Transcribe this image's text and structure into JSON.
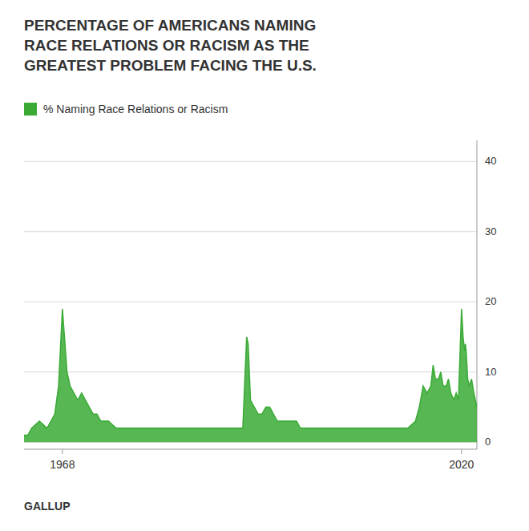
{
  "chart_data": {
    "type": "area",
    "title": "PERCENTAGE OF AMERICANS NAMING\nRACE RELATIONS OR RACISM AS THE\nGREATEST PROBLEM FACING THE U.S.",
    "annotations": [
      "GALLUP"
    ],
    "x": [
      1963,
      1963.5,
      1964,
      1965,
      1966,
      1966.5,
      1967,
      1967.5,
      1968,
      1968.2,
      1968.4,
      1968.6,
      1968.8,
      1969,
      1969.5,
      1970,
      1970.5,
      1971,
      1971.5,
      1972,
      1972.5,
      1973,
      1974,
      1975,
      1976,
      1977,
      1978,
      1979,
      1980,
      1981,
      1982,
      1983,
      1984,
      1985,
      1986,
      1987,
      1988,
      1989,
      1990,
      1991,
      1991.5,
      1992,
      1992.2,
      1992.5,
      1993,
      1993.5,
      1994,
      1994.5,
      1995,
      1995.5,
      1996,
      1996.5,
      1997,
      1997.5,
      1998,
      1998.5,
      1999,
      2000,
      2000.5,
      2001,
      2002,
      2003,
      2004,
      2005,
      2006,
      2007,
      2008,
      2009,
      2010,
      2011,
      2012,
      2013,
      2014,
      2014.5,
      2015,
      2015.5,
      2016,
      2016.3,
      2016.6,
      2017,
      2017.3,
      2017.6,
      2018,
      2018.3,
      2018.6,
      2019,
      2019.3,
      2019.6,
      2020,
      2020.1,
      2020.2,
      2020.3,
      2020.4,
      2020.5,
      2020.6,
      2020.8,
      2021,
      2021.3,
      2021.6,
      2022
    ],
    "series": [
      {
        "name": "% Naming Race Relations or Racism",
        "color": "#3aaa35",
        "values": [
          1,
          1,
          2,
          3,
          2,
          3,
          4,
          8,
          19,
          16,
          13,
          10,
          9,
          8,
          7,
          6,
          7,
          6,
          5,
          4,
          4,
          3,
          3,
          2,
          2,
          2,
          2,
          2,
          2,
          2,
          2,
          2,
          2,
          2,
          2,
          2,
          2,
          2,
          2,
          2,
          2,
          15,
          14,
          6,
          5,
          4,
          4,
          5,
          5,
          4,
          3,
          3,
          3,
          3,
          3,
          3,
          2,
          2,
          2,
          2,
          2,
          2,
          2,
          2,
          2,
          2,
          2,
          2,
          2,
          2,
          2,
          2,
          3,
          5,
          8,
          7,
          8,
          11,
          9,
          9,
          10,
          8,
          8,
          9,
          7,
          6,
          7,
          6,
          19,
          17,
          15,
          14,
          13,
          14,
          13,
          9,
          8,
          9,
          7,
          5
        ]
      }
    ],
    "xlim": [
      1963,
      2022
    ],
    "xticks": [
      1968,
      2020
    ],
    "ylim": [
      -1,
      43
    ],
    "yticks": [
      0,
      10,
      20,
      30,
      40
    ],
    "grid": true,
    "legend": "upper left"
  }
}
